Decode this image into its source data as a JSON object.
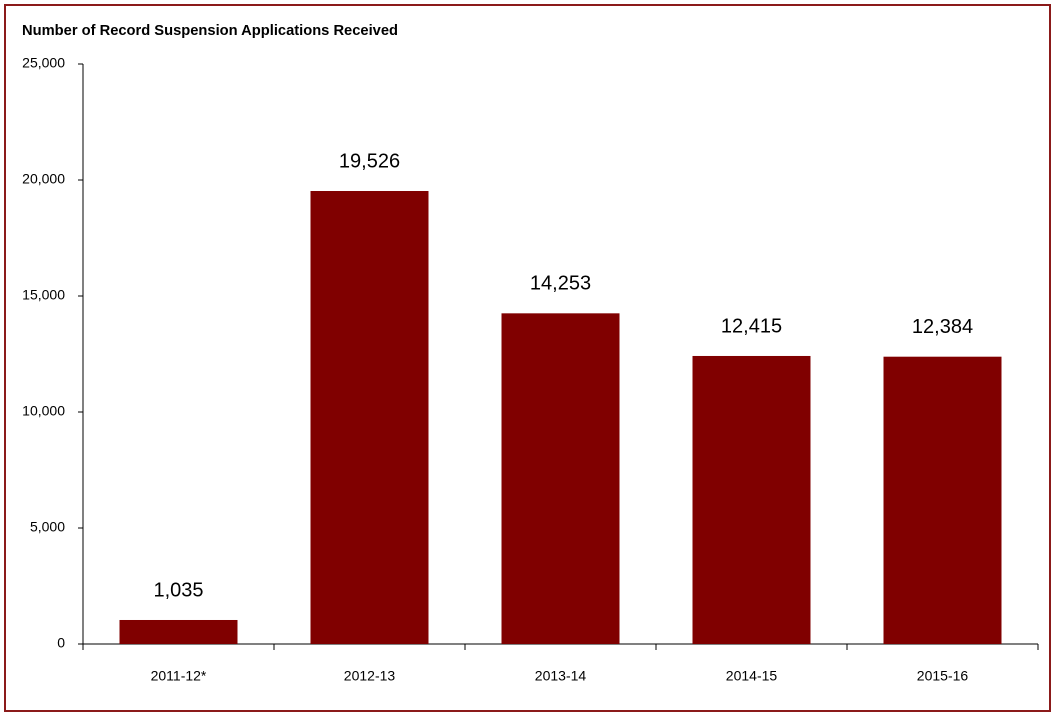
{
  "chart_data": {
    "type": "bar",
    "title": "Number of Record Suspension Applications Received",
    "categories": [
      "2011-12*",
      "2012-13",
      "2013-14",
      "2014-15",
      "2015-16"
    ],
    "values": [
      1035,
      19526,
      14253,
      12415,
      12384
    ],
    "value_labels": [
      "1,035",
      "19,526",
      "14,253",
      "12,415",
      "12,384"
    ],
    "color": "#800000",
    "ylim": [
      0,
      25000
    ],
    "yticks": [
      0,
      {
        "value": 5000,
        "label": "5,000"
      },
      {
        "value": 10000,
        "label": "10,000"
      },
      {
        "value": 15000,
        "label": "15,000"
      },
      {
        "value": 20000,
        "label": "20,000"
      },
      {
        "value": 25000,
        "label": "25,000"
      }
    ],
    "grid": false
  }
}
